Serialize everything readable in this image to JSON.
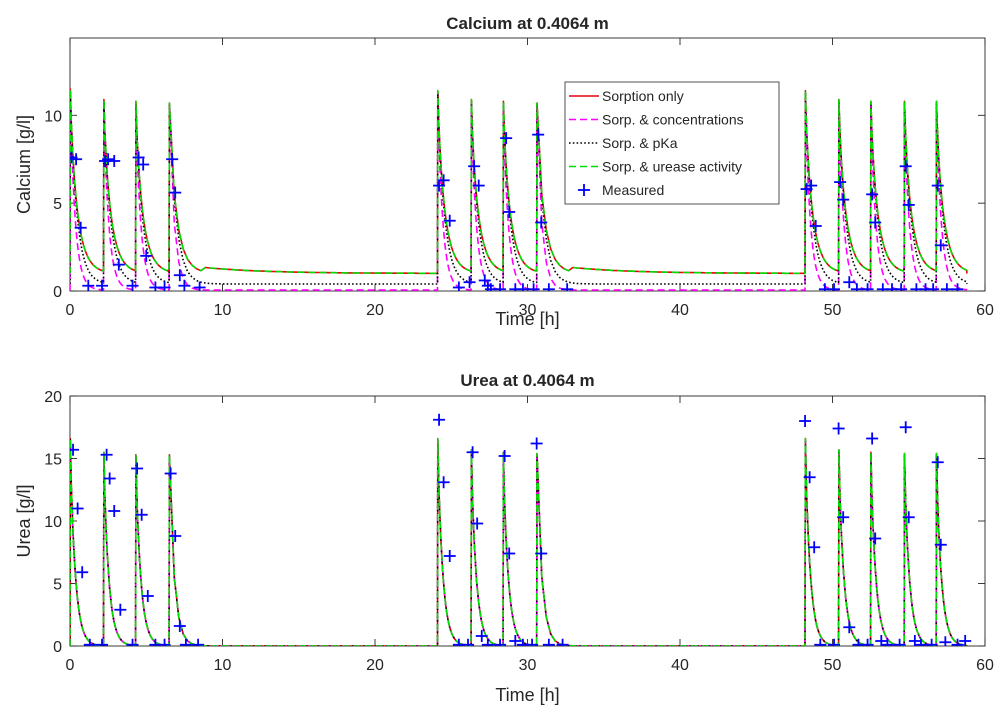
{
  "chart_data": [
    {
      "type": "line",
      "title": "Calcium at 0.4064 m",
      "xlabel": "Time [h]",
      "ylabel": "Calcium [g/l]",
      "xlim": [
        0,
        60
      ],
      "ylim": [
        0,
        14.4
      ],
      "xticks": [
        0,
        10,
        20,
        30,
        40,
        50,
        60
      ],
      "yticks": [
        0,
        5,
        10
      ],
      "grid": false,
      "legend_position": "upper-center-right",
      "pulse_times": [
        0,
        2.2,
        4.3,
        6.5,
        24.1,
        26.3,
        28.4,
        30.6,
        48.2,
        50.4,
        52.5,
        54.7,
        56.8
      ],
      "series": [
        {
          "name": "Sorption only",
          "color": "#e8000b",
          "style": "solid",
          "peaks": [
            11.5,
            10.9,
            10.8,
            10.7,
            11.4,
            10.9,
            10.8,
            10.7,
            11.4,
            10.9,
            10.8,
            10.8,
            10.8
          ],
          "tail_level": 1.0
        },
        {
          "name": "Sorp. & concentrations",
          "color": "#ff00ff",
          "style": "dashed",
          "peaks": [
            11.4,
            10.8,
            10.7,
            10.6,
            11.3,
            10.8,
            10.7,
            10.6,
            11.3,
            10.8,
            10.7,
            10.7,
            10.7
          ],
          "tail_level": 0.05
        },
        {
          "name": "Sorp. & pKa",
          "color": "#000000",
          "style": "dotted",
          "peaks": [
            11.4,
            10.8,
            10.7,
            10.6,
            11.3,
            10.8,
            10.7,
            10.6,
            11.3,
            10.8,
            10.7,
            10.7,
            10.7
          ],
          "tail_level": 0.4
        },
        {
          "name": "Sorp. & urease activity",
          "color": "#00dd00",
          "style": "dashed",
          "peaks": [
            11.5,
            10.9,
            10.8,
            10.7,
            11.4,
            10.9,
            10.8,
            10.7,
            11.4,
            10.9,
            10.8,
            10.8,
            10.8
          ],
          "tail_level": 1.0
        },
        {
          "name": "Measured",
          "color": "#0000ff",
          "style": "plus",
          "points": [
            [
              0.1,
              7.6
            ],
            [
              0.4,
              7.5
            ],
            [
              0.7,
              3.6
            ],
            [
              1.2,
              0.3
            ],
            [
              2.1,
              0.3
            ],
            [
              2.3,
              7.4
            ],
            [
              2.5,
              7.5
            ],
            [
              2.9,
              7.4
            ],
            [
              3.2,
              1.5
            ],
            [
              4.1,
              0.3
            ],
            [
              4.5,
              7.6
            ],
            [
              4.8,
              7.2
            ],
            [
              5.0,
              2.0
            ],
            [
              5.6,
              0.2
            ],
            [
              6.2,
              0.2
            ],
            [
              6.7,
              7.5
            ],
            [
              6.9,
              5.6
            ],
            [
              7.2,
              0.9
            ],
            [
              7.5,
              0.3
            ],
            [
              8.5,
              0.2
            ],
            [
              24.2,
              6.0
            ],
            [
              24.5,
              6.3
            ],
            [
              24.9,
              4.0
            ],
            [
              25.5,
              0.2
            ],
            [
              26.2,
              0.5
            ],
            [
              26.5,
              7.1
            ],
            [
              26.8,
              6.0
            ],
            [
              27.2,
              0.6
            ],
            [
              27.4,
              0.3
            ],
            [
              27.6,
              0.1
            ],
            [
              28.2,
              0.1
            ],
            [
              28.6,
              8.7
            ],
            [
              28.8,
              4.5
            ],
            [
              29.2,
              0.1
            ],
            [
              29.7,
              0.1
            ],
            [
              30.4,
              0.1
            ],
            [
              30.7,
              8.9
            ],
            [
              30.9,
              3.9
            ],
            [
              31.4,
              0.1
            ],
            [
              32.6,
              0.1
            ],
            [
              48.3,
              5.8
            ],
            [
              48.6,
              6.0
            ],
            [
              48.9,
              3.7
            ],
            [
              49.5,
              0.1
            ],
            [
              50.1,
              0.1
            ],
            [
              50.5,
              6.2
            ],
            [
              50.7,
              5.2
            ],
            [
              51.1,
              0.5
            ],
            [
              51.6,
              0.1
            ],
            [
              52.3,
              0.1
            ],
            [
              52.6,
              5.5
            ],
            [
              52.8,
              3.9
            ],
            [
              53.3,
              0.1
            ],
            [
              53.9,
              0.1
            ],
            [
              54.5,
              0.1
            ],
            [
              54.8,
              7.1
            ],
            [
              55.0,
              4.9
            ],
            [
              55.5,
              0.1
            ],
            [
              56.1,
              0.1
            ],
            [
              56.6,
              0.1
            ],
            [
              56.9,
              6.0
            ],
            [
              57.1,
              2.6
            ],
            [
              57.5,
              0.1
            ],
            [
              58.2,
              0.1
            ]
          ]
        }
      ]
    },
    {
      "type": "line",
      "title": "Urea at 0.4064 m",
      "xlabel": "Time [h]",
      "ylabel": "Urea [g/l]",
      "xlim": [
        0,
        60
      ],
      "ylim": [
        0,
        20
      ],
      "xticks": [
        0,
        10,
        20,
        30,
        40,
        50,
        60
      ],
      "yticks": [
        0,
        5,
        10,
        15,
        20
      ],
      "grid": false,
      "pulse_times": [
        0,
        2.2,
        4.3,
        6.5,
        24.1,
        26.3,
        28.4,
        30.6,
        48.2,
        50.4,
        52.5,
        54.7,
        56.8
      ],
      "series": [
        {
          "name": "Sorption only",
          "color": "#e8000b",
          "style": "solid",
          "peaks": [
            16.6,
            15.5,
            15.3,
            15.3,
            16.6,
            15.7,
            15.5,
            15.4,
            16.6,
            15.7,
            15.5,
            15.4,
            15.4
          ],
          "tail_level": 0.0
        },
        {
          "name": "Sorp. & concentrations",
          "color": "#ff00ff",
          "style": "dashed",
          "peaks": [
            16.5,
            15.4,
            15.2,
            15.2,
            16.5,
            15.6,
            15.4,
            15.3,
            16.5,
            15.6,
            15.4,
            15.3,
            15.3
          ],
          "tail_level": 0.0
        },
        {
          "name": "Sorp. & pKa",
          "color": "#000000",
          "style": "dotted",
          "peaks": [
            16.5,
            15.4,
            15.2,
            15.2,
            16.5,
            15.6,
            15.4,
            15.3,
            16.5,
            15.6,
            15.4,
            15.3,
            15.3
          ],
          "tail_level": 0.0
        },
        {
          "name": "Sorp. & urease activity",
          "color": "#00dd00",
          "style": "dashed",
          "peaks": [
            16.6,
            15.5,
            15.3,
            15.3,
            16.6,
            15.7,
            15.5,
            15.4,
            16.6,
            15.7,
            15.5,
            15.4,
            15.4
          ],
          "tail_level": 0.0
        },
        {
          "name": "Measured",
          "color": "#0000ff",
          "style": "plus",
          "points": [
            [
              0.2,
              15.7
            ],
            [
              0.5,
              11.0
            ],
            [
              0.8,
              5.9
            ],
            [
              1.3,
              0.1
            ],
            [
              2.1,
              0.1
            ],
            [
              2.4,
              15.3
            ],
            [
              2.6,
              13.4
            ],
            [
              2.9,
              10.8
            ],
            [
              3.3,
              2.9
            ],
            [
              4.1,
              0.1
            ],
            [
              4.4,
              14.2
            ],
            [
              4.7,
              10.5
            ],
            [
              5.1,
              4.0
            ],
            [
              5.6,
              0.1
            ],
            [
              6.2,
              0.1
            ],
            [
              6.6,
              13.8
            ],
            [
              6.9,
              8.8
            ],
            [
              7.2,
              1.6
            ],
            [
              7.6,
              0.1
            ],
            [
              8.4,
              0.1
            ],
            [
              24.2,
              18.1
            ],
            [
              24.5,
              13.1
            ],
            [
              24.9,
              7.2
            ],
            [
              25.5,
              0.1
            ],
            [
              26.1,
              0.1
            ],
            [
              26.4,
              15.5
            ],
            [
              26.7,
              9.8
            ],
            [
              27.0,
              0.8
            ],
            [
              27.4,
              0.1
            ],
            [
              28.2,
              0.1
            ],
            [
              28.5,
              15.2
            ],
            [
              28.8,
              7.4
            ],
            [
              29.2,
              0.4
            ],
            [
              29.7,
              0.1
            ],
            [
              30.3,
              0.1
            ],
            [
              30.6,
              16.2
            ],
            [
              30.9,
              7.4
            ],
            [
              31.4,
              0.1
            ],
            [
              32.3,
              0.1
            ],
            [
              48.2,
              18.0
            ],
            [
              48.5,
              13.5
            ],
            [
              48.8,
              7.9
            ],
            [
              49.2,
              0.1
            ],
            [
              50.1,
              0.1
            ],
            [
              50.4,
              17.4
            ],
            [
              50.7,
              10.3
            ],
            [
              51.1,
              1.5
            ],
            [
              51.7,
              0.1
            ],
            [
              52.3,
              0.1
            ],
            [
              52.6,
              16.6
            ],
            [
              52.8,
              8.6
            ],
            [
              53.2,
              0.4
            ],
            [
              53.6,
              0.1
            ],
            [
              54.4,
              0.1
            ],
            [
              54.8,
              17.5
            ],
            [
              55.0,
              10.3
            ],
            [
              55.4,
              0.4
            ],
            [
              55.8,
              0.1
            ],
            [
              56.5,
              0.1
            ],
            [
              56.9,
              14.7
            ],
            [
              57.1,
              8.1
            ],
            [
              57.4,
              0.3
            ],
            [
              58.2,
              0.1
            ],
            [
              58.7,
              0.4
            ]
          ]
        }
      ]
    }
  ]
}
